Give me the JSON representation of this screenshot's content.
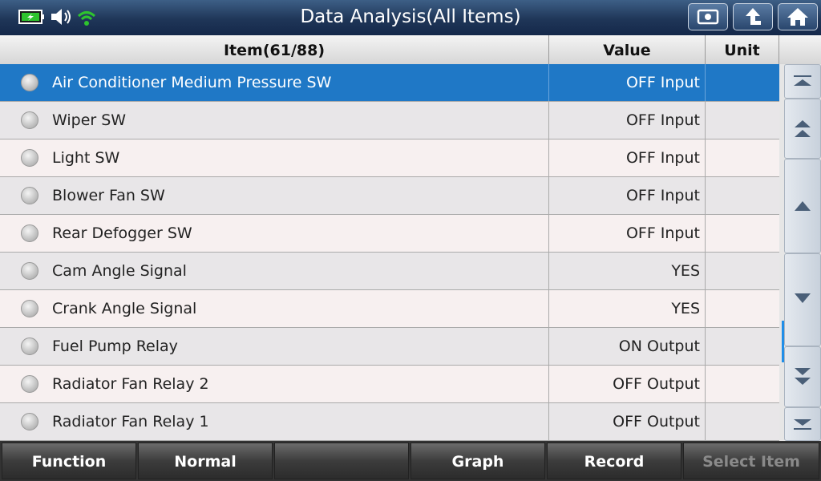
{
  "header": {
    "title": "Data Analysis(All Items)"
  },
  "table": {
    "columns": [
      "Item(61/88)",
      "Value",
      "Unit"
    ],
    "rows": [
      [
        "Air Conditioner Medium Pressure SW",
        "OFF Input"
      ],
      [
        "Wiper SW",
        "OFF Input"
      ],
      [
        "Light SW",
        "OFF Input"
      ],
      [
        "Blower Fan SW",
        "OFF Input"
      ],
      [
        "Rear Defogger SW",
        "OFF Input"
      ],
      [
        "Cam Angle Signal",
        "YES"
      ],
      [
        "Crank Angle Signal",
        "YES"
      ],
      [
        "Fuel Pump Relay",
        "ON Output"
      ],
      [
        "Radiator Fan Relay 2",
        "OFF Output"
      ],
      [
        "Radiator Fan Relay 1",
        "OFF Output"
      ]
    ]
  },
  "toolbar": {
    "buttons": [
      "Function",
      "Normal",
      "Graph",
      "Record",
      "Select Item"
    ]
  }
}
